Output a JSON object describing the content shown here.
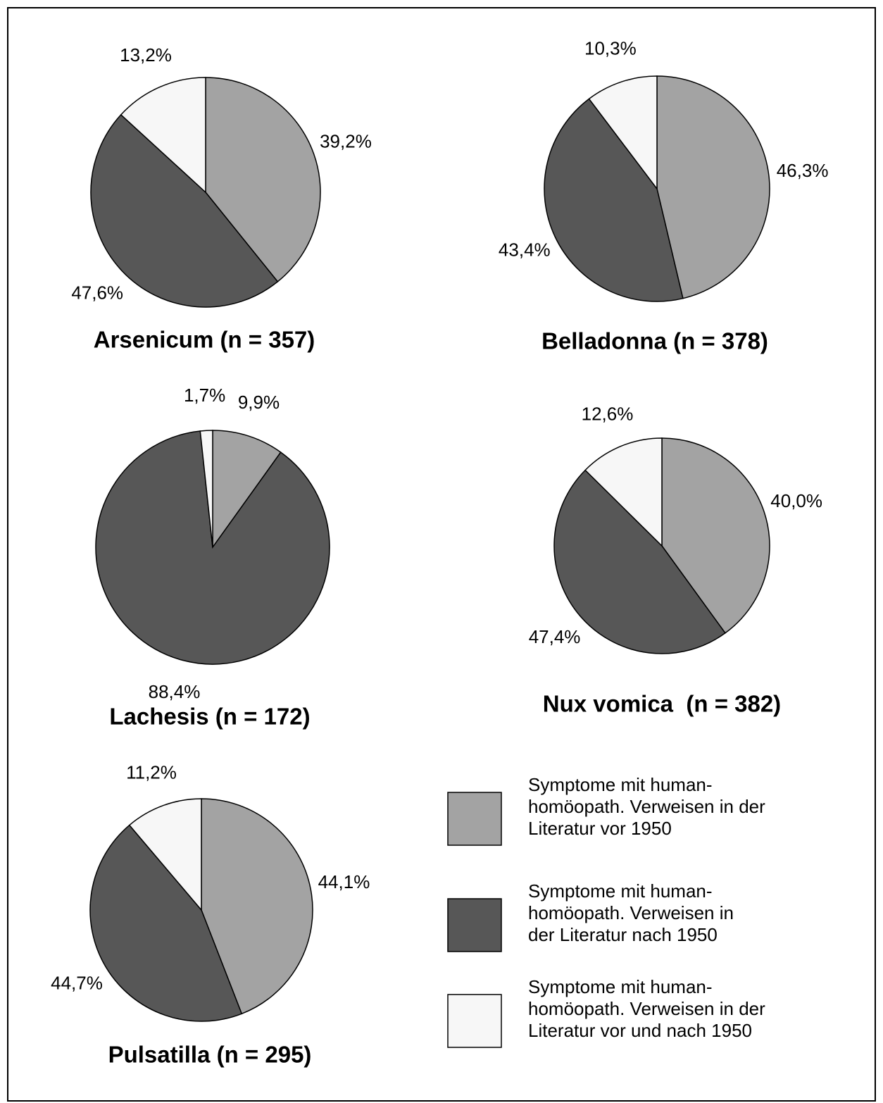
{
  "chart_data": [
    {
      "type": "pie",
      "title": "Arsenicum (n = 357)",
      "values": [
        39.2,
        47.6,
        13.2
      ],
      "value_labels": [
        "39,2%",
        "47,6%",
        "13,2%"
      ]
    },
    {
      "type": "pie",
      "title": "Belladonna (n = 378)",
      "values": [
        46.3,
        43.4,
        10.3
      ],
      "value_labels": [
        "46,3%",
        "43,4%",
        "10,3%"
      ]
    },
    {
      "type": "pie",
      "title": "Lachesis (n = 172)",
      "values": [
        9.9,
        88.4,
        1.7
      ],
      "value_labels": [
        "9,9%",
        "88,4%",
        "1,7%"
      ]
    },
    {
      "type": "pie",
      "title": "Nux vomica  (n = 382)",
      "values": [
        40.0,
        47.4,
        12.6
      ],
      "value_labels": [
        "40,0%",
        "47,4%",
        "12,6%"
      ]
    },
    {
      "type": "pie",
      "title": "Pulsatilla (n = 295)",
      "values": [
        44.1,
        44.7,
        11.2
      ],
      "value_labels": [
        "44,1%",
        "44,7%",
        "11,2%"
      ]
    }
  ],
  "legend": {
    "entries": [
      {
        "color": "#a3a3a3",
        "lines": [
          "Symptome mit human-",
          "homöopath. Verweisen in der",
          "Literatur vor 1950"
        ]
      },
      {
        "color": "#575757",
        "lines": [
          "Symptome mit human-",
          "homöopath. Verweisen in",
          "der Literatur nach 1950"
        ]
      },
      {
        "color": "#f7f7f7",
        "lines": [
          "Symptome mit human-",
          "homöopath. Verweisen in der",
          "Literatur vor und nach 1950"
        ]
      }
    ]
  }
}
